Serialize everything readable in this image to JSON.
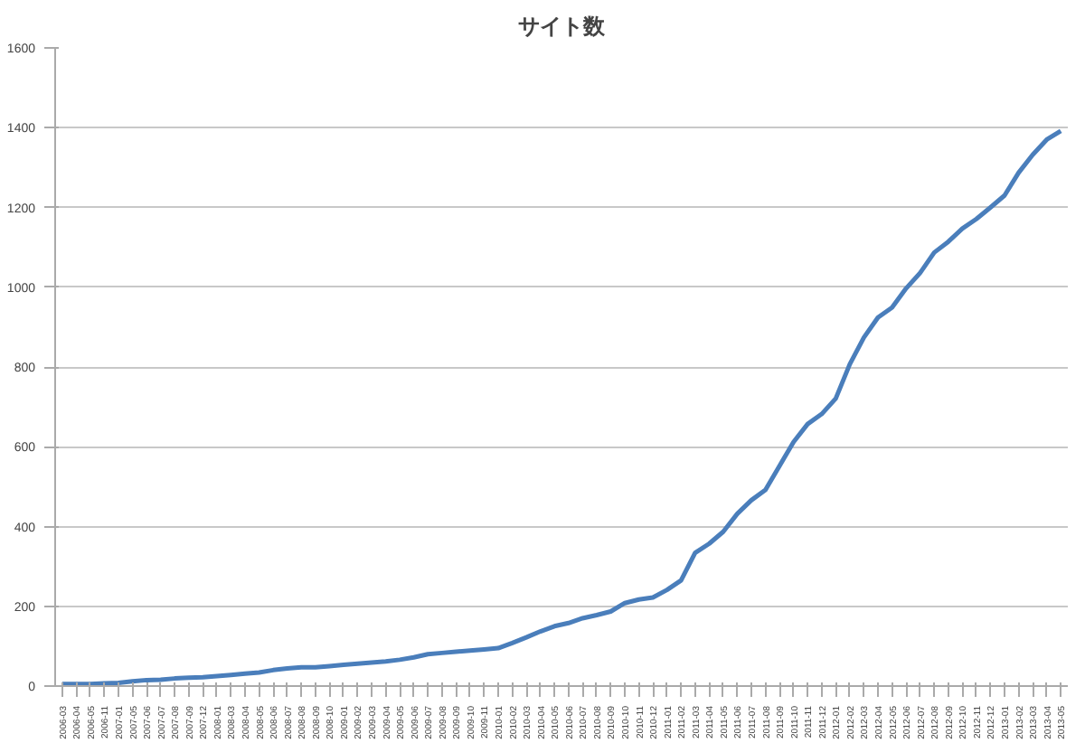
{
  "chart_data": {
    "type": "line",
    "title": "サイト数",
    "categories": [
      "2006-03",
      "2006-04",
      "2006-05",
      "2006-11",
      "2007-01",
      "2007-05",
      "2007-06",
      "2007-07",
      "2007-08",
      "2007-09",
      "2007-12",
      "2008-01",
      "2008-03",
      "2008-04",
      "2008-05",
      "2008-06",
      "2008-07",
      "2008-08",
      "2008-09",
      "2008-10",
      "2009-01",
      "2009-02",
      "2009-03",
      "2009-04",
      "2009-05",
      "2009-06",
      "2009-07",
      "2009-08",
      "2009-09",
      "2009-10",
      "2009-11",
      "2010-01",
      "2010-02",
      "2010-03",
      "2010-04",
      "2010-05",
      "2010-06",
      "2010-07",
      "2010-08",
      "2010-09",
      "2010-10",
      "2010-11",
      "2010-12",
      "2011-01",
      "2011-02",
      "2011-03",
      "2011-04",
      "2011-05",
      "2011-06",
      "2011-07",
      "2011-08",
      "2011-09",
      "2011-10",
      "2011-11",
      "2011-12",
      "2012-01",
      "2012-02",
      "2012-03",
      "2012-04",
      "2012-05",
      "2012-06",
      "2012-07",
      "2012-08",
      "2012-09",
      "2012-10",
      "2012-11",
      "2012-12",
      "2013-01",
      "2013-02",
      "2013-03",
      "2013-04",
      "2013-05"
    ],
    "series": [
      {
        "color": "#4a7ebb",
        "values": [
          5,
          5,
          5,
          7,
          8,
          12,
          15,
          16,
          19,
          21,
          22,
          25,
          28,
          31,
          34,
          40,
          44,
          47,
          47,
          50,
          53,
          56,
          59,
          62,
          66,
          72,
          80,
          83,
          86,
          89,
          92,
          95,
          108,
          122,
          137,
          150,
          158,
          170,
          178,
          187,
          208,
          217,
          222,
          241,
          265,
          334,
          357,
          387,
          432,
          466,
          492,
          552,
          612,
          657,
          682,
          721,
          807,
          874,
          924,
          949,
          997,
          1036,
          1087,
          1114,
          1147,
          1171,
          1200,
          1230,
          1287,
          1332,
          1370,
          1392
        ]
      }
    ],
    "ylim": [
      0,
      1600
    ],
    "yticks": [
      0,
      200,
      400,
      600,
      800,
      1000,
      1200,
      1400,
      1600
    ],
    "grid": "y",
    "marker": "none",
    "line_style": "solid"
  }
}
